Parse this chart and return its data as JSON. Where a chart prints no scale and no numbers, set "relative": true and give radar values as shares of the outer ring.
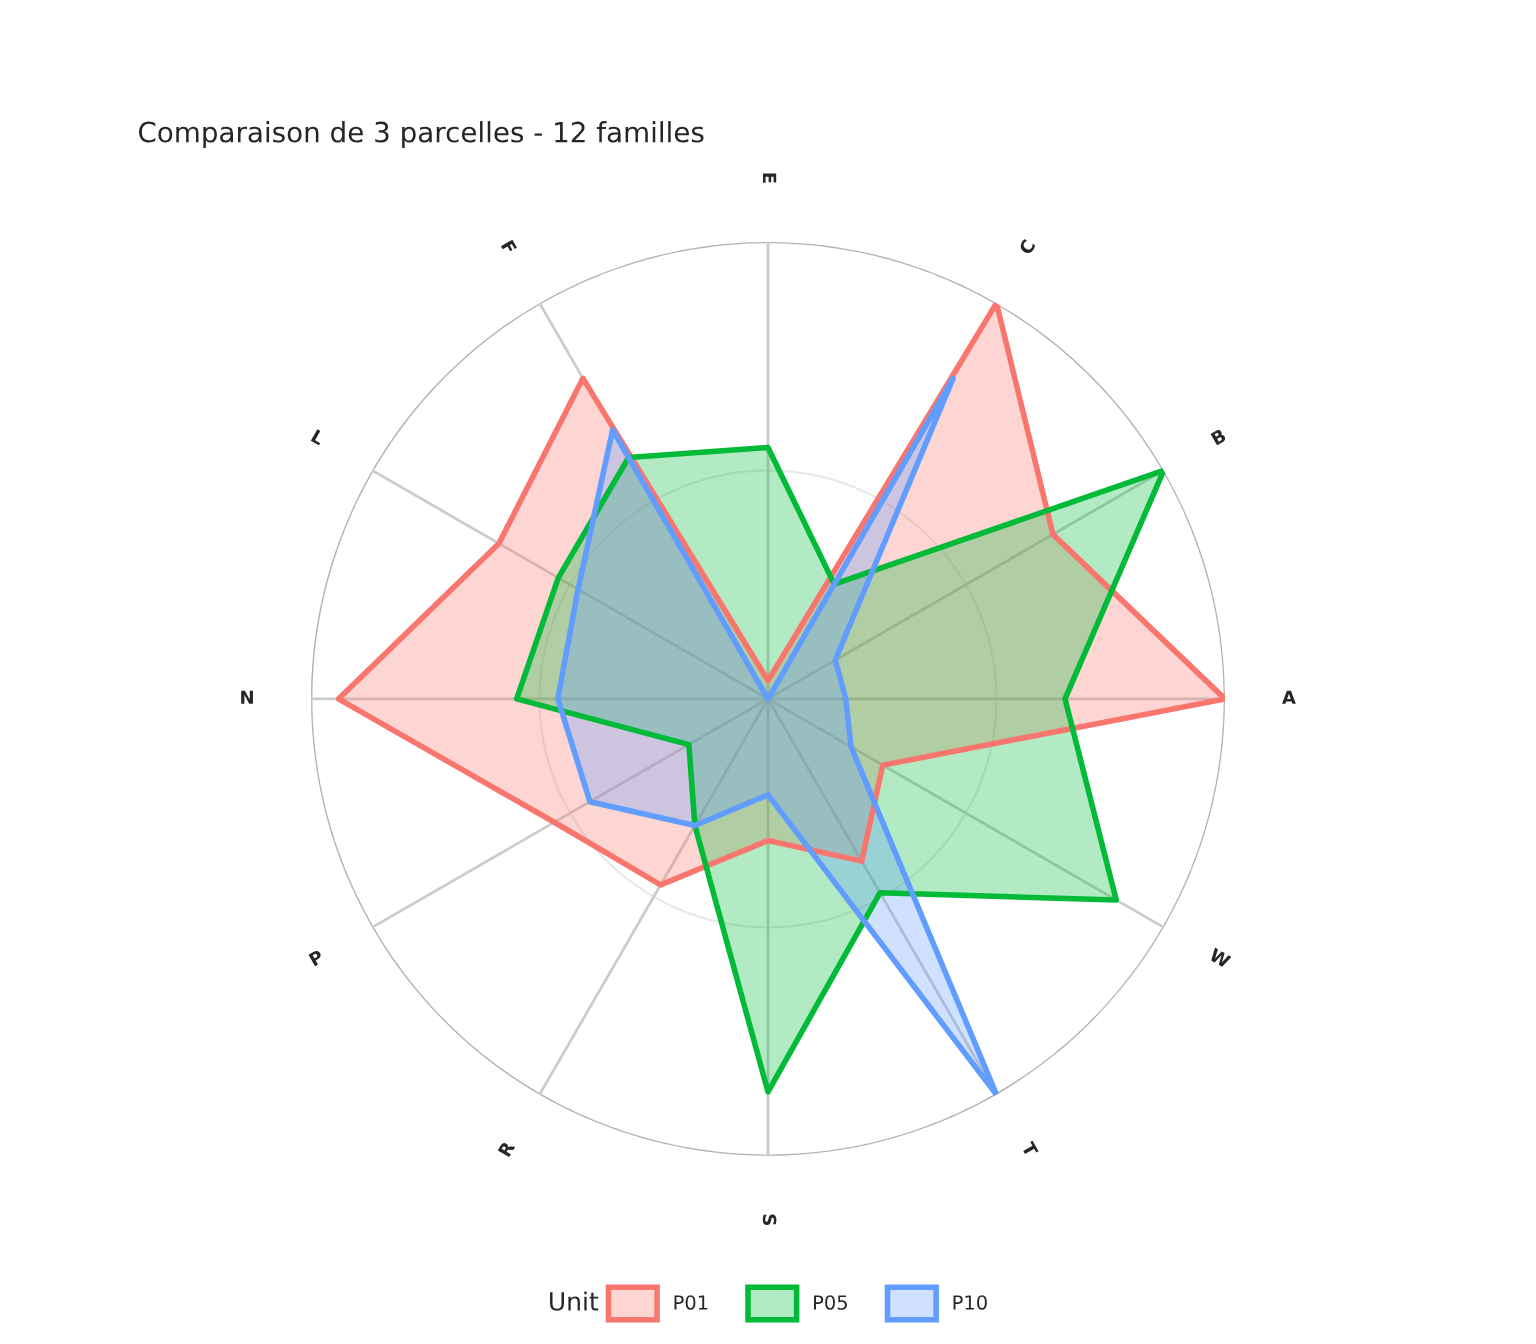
{
  "chart_data": {
    "type": "radar",
    "title": "Comparaison de 3 parcelles - 12 familles",
    "categories": [
      "E",
      "C",
      "B",
      "A",
      "W",
      "T",
      "S",
      "R",
      "P",
      "N",
      "L",
      "F"
    ],
    "relative": true,
    "grid": true,
    "legend": "bottom",
    "legend_title": "Unit",
    "series": [
      {
        "name": "P01",
        "color": "#f8766d",
        "values": [
          0.04,
          1.0,
          0.72,
          1.0,
          0.29,
          0.41,
          0.31,
          0.47,
          0.54,
          0.94,
          0.68,
          0.81
        ]
      },
      {
        "name": "P05",
        "color": "#00ba38",
        "values": [
          0.55,
          0.29,
          1.0,
          0.65,
          0.88,
          0.49,
          0.86,
          0.32,
          0.2,
          0.55,
          0.53,
          0.61
        ]
      },
      {
        "name": "P10",
        "color": "#619cff",
        "values": [
          0.0,
          0.81,
          0.17,
          0.17,
          0.21,
          1.0,
          0.21,
          0.32,
          0.45,
          0.46,
          0.48,
          0.68
        ]
      }
    ]
  }
}
